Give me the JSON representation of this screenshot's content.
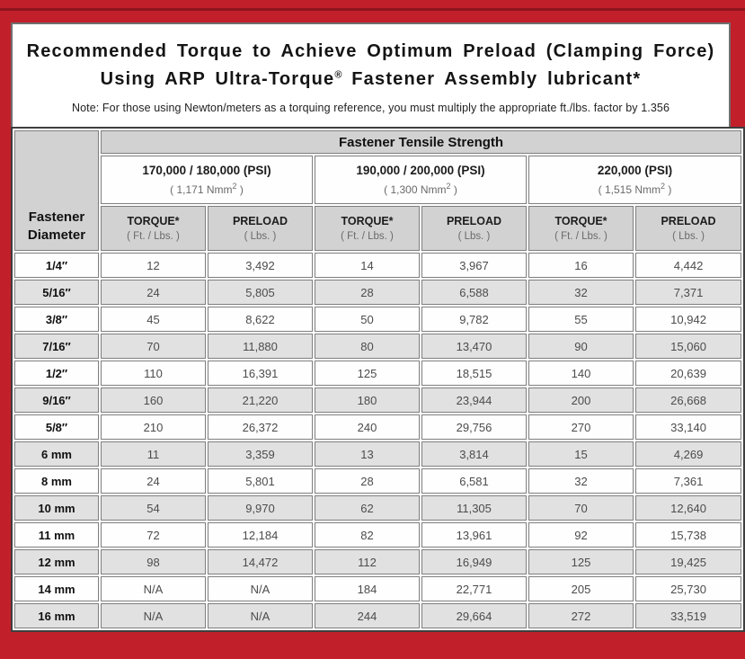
{
  "colors": {
    "frame_red": "#c1202b",
    "frame_accent_dark_red": "#8e151d",
    "header_gray": "#d2d2d2",
    "alt_row_gray": "#e2e1e1",
    "table_border_dark": "#3e3e3e",
    "value_text_gray": "#4c4c4c"
  },
  "title": {
    "line1": "Recommended Torque to Achieve Optimum Preload (Clamping Force)",
    "line2_pre": "Using ARP Ultra-Torque",
    "line2_sup": "®",
    "line2_post": " Fastener Assembly lubricant*",
    "note": "Note: For those using Newton/meters as a torquing reference, you must multiply the appropriate ft./lbs. factor by 1.356"
  },
  "table": {
    "corner": {
      "line1": "Fastener",
      "line2": "Diameter"
    },
    "group_header": "Fastener Tensile Strength",
    "strength_groups": [
      {
        "psi": "170,000 / 180,000 (PSI)",
        "nmm_pre": "( 1,171 Nmm",
        "nmm_sup": "2",
        "nmm_post": " )"
      },
      {
        "psi": "190,000 / 200,000 (PSI)",
        "nmm_pre": "( 1,300 Nmm",
        "nmm_sup": "2",
        "nmm_post": " )"
      },
      {
        "psi": "220,000 (PSI)",
        "nmm_pre": "( 1,515 Nmm",
        "nmm_sup": "2",
        "nmm_post": " )"
      }
    ],
    "torque_header": {
      "label": "TORQUE*",
      "sub": "( Ft. / Lbs. )"
    },
    "preload_header": {
      "label": "PRELOAD",
      "sub": "( Lbs. )"
    },
    "rows": [
      {
        "dia": "1/4″",
        "values": [
          "12",
          "3,492",
          "14",
          "3,967",
          "16",
          "4,442"
        ]
      },
      {
        "dia": "5/16″",
        "values": [
          "24",
          "5,805",
          "28",
          "6,588",
          "32",
          "7,371"
        ]
      },
      {
        "dia": "3/8″",
        "values": [
          "45",
          "8,622",
          "50",
          "9,782",
          "55",
          "10,942"
        ]
      },
      {
        "dia": "7/16″",
        "values": [
          "70",
          "11,880",
          "80",
          "13,470",
          "90",
          "15,060"
        ]
      },
      {
        "dia": "1/2″",
        "values": [
          "110",
          "16,391",
          "125",
          "18,515",
          "140",
          "20,639"
        ]
      },
      {
        "dia": "9/16″",
        "values": [
          "160",
          "21,220",
          "180",
          "23,944",
          "200",
          "26,668"
        ]
      },
      {
        "dia": "5/8″",
        "values": [
          "210",
          "26,372",
          "240",
          "29,756",
          "270",
          "33,140"
        ]
      },
      {
        "dia": "6 mm",
        "values": [
          "11",
          "3,359",
          "13",
          "3,814",
          "15",
          "4,269"
        ]
      },
      {
        "dia": "8 mm",
        "values": [
          "24",
          "5,801",
          "28",
          "6,581",
          "32",
          "7,361"
        ]
      },
      {
        "dia": "10 mm",
        "values": [
          "54",
          "9,970",
          "62",
          "11,305",
          "70",
          "12,640"
        ]
      },
      {
        "dia": "11 mm",
        "values": [
          "72",
          "12,184",
          "82",
          "13,961",
          "92",
          "15,738"
        ]
      },
      {
        "dia": "12 mm",
        "values": [
          "98",
          "14,472",
          "112",
          "16,949",
          "125",
          "19,425"
        ]
      },
      {
        "dia": "14 mm",
        "values": [
          "N/A",
          "N/A",
          "184",
          "22,771",
          "205",
          "25,730"
        ]
      },
      {
        "dia": "16 mm",
        "values": [
          "N/A",
          "N/A",
          "244",
          "29,664",
          "272",
          "33,519"
        ]
      }
    ]
  }
}
